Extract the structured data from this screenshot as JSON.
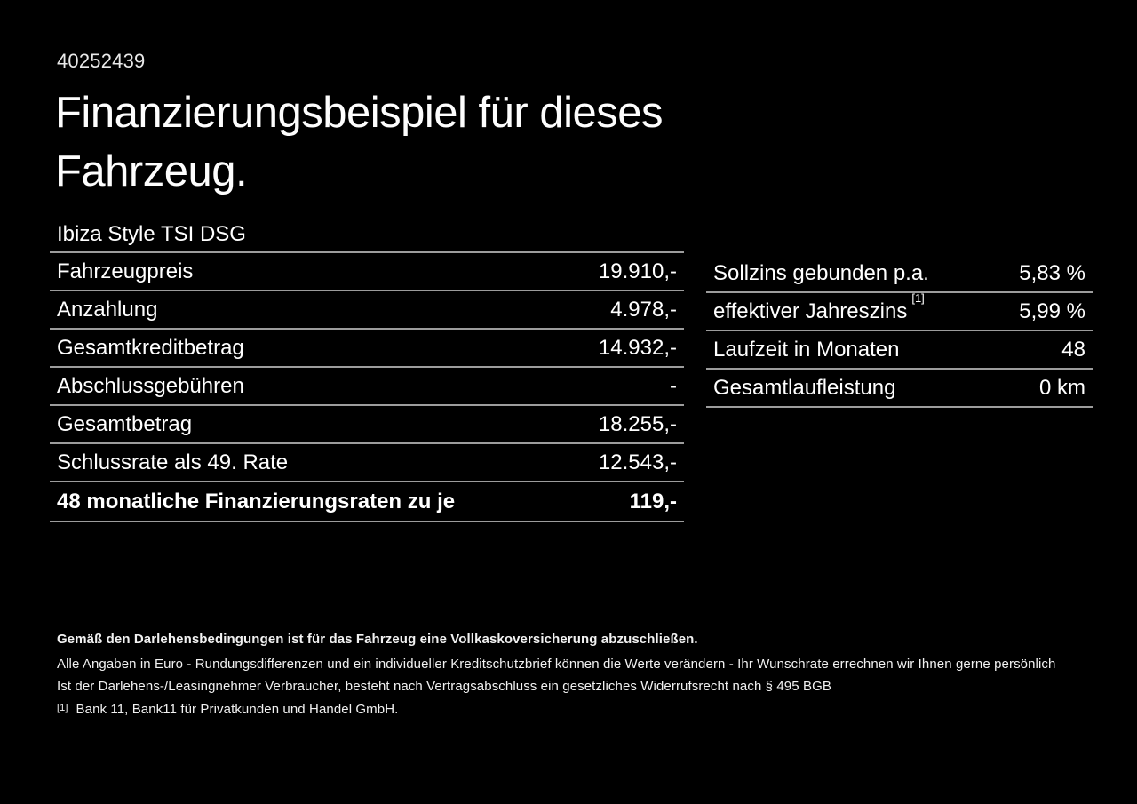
{
  "page": {
    "id_number": "40252439",
    "title": "Finanzierungsbeispiel für dieses Fahrzeug.",
    "model": "Ibiza Style TSI DSG"
  },
  "finance_table": {
    "rows": [
      {
        "label": "Fahrzeugpreis",
        "value": "19.910,-"
      },
      {
        "label": "Anzahlung",
        "value": "4.978,-"
      },
      {
        "label": "Gesamtkreditbetrag",
        "value": "14.932,-"
      },
      {
        "label": "Abschlussgebühren",
        "value": "-"
      },
      {
        "label": "Gesamtbetrag",
        "value": "18.255,-"
      },
      {
        "label": "Schlussrate als 49. Rate",
        "value": "12.543,-"
      },
      {
        "label": "48 monatliche Finanzierungsraten zu je",
        "value": "119,-"
      }
    ]
  },
  "conditions_table": {
    "rows": [
      {
        "label": "Sollzins gebunden p.a.",
        "value": "5,83 %"
      },
      {
        "label": "effektiver Jahreszins",
        "footnote_marker": "[1]",
        "value": "5,99 %"
      },
      {
        "label": "Laufzeit in Monaten",
        "value": "48"
      },
      {
        "label": "Gesamtlaufleistung",
        "value": "0 km"
      }
    ]
  },
  "footer": {
    "line1": "Gemäß den Darlehensbedingungen ist für das Fahrzeug eine Vollkaskoversicherung abzuschließen.",
    "line2": "Alle Angaben in Euro - Rundungsdifferenzen und ein individueller Kreditschutzbrief können die Werte verändern - Ihr Wunschrate errechnen wir Ihnen gerne persönlich",
    "line3": "Ist der Darlehens-/Leasingnehmer Verbraucher, besteht nach Vertragsabschluss ein gesetzliches Widerrufsrecht nach § 495 BGB",
    "footnote_marker": "[1]",
    "footnote_text": "Bank 11, Bank11 für Privatkunden und Handel GmbH."
  },
  "colors": {
    "background": "#000000",
    "text": "#ffffff",
    "divider": "#9c9c9c"
  }
}
